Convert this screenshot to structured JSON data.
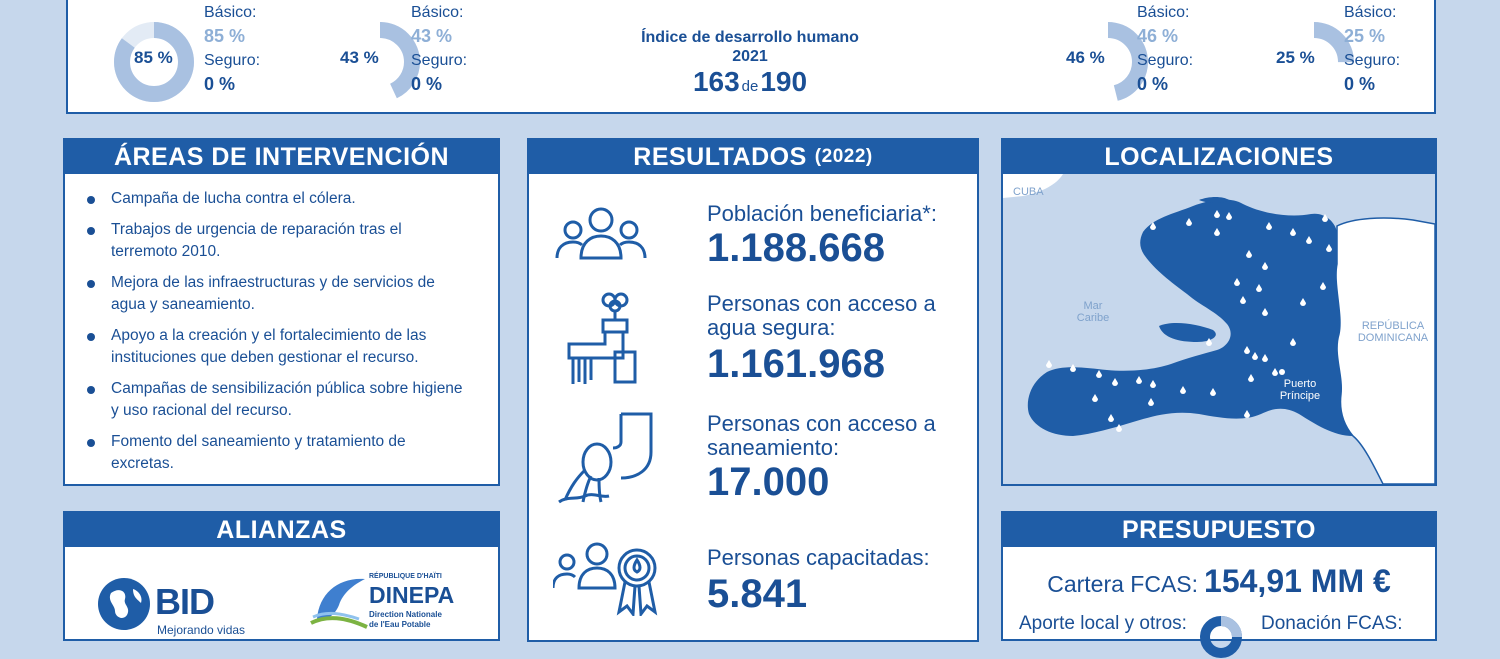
{
  "top_stats": [
    {
      "center": "85 %",
      "label1": "Básico:",
      "value1": "85 %",
      "label2": "Seguro:",
      "value2": "0 %",
      "fraction": 0.85
    },
    {
      "center": "43 %",
      "label1": "Básico:",
      "value1": "43 %",
      "label2": "Seguro:",
      "value2": "0 %",
      "fraction": 0.43
    },
    {
      "center": "46 %",
      "label1": "Básico:",
      "value1": "46 %",
      "label2": "Seguro:",
      "value2": "0 %",
      "fraction": 0.46
    },
    {
      "center": "25 %",
      "label1": "Básico:",
      "value1": "25 %",
      "label2": "Seguro:",
      "value2": "0 %",
      "fraction": 0.25
    }
  ],
  "idh": {
    "title": "Índice de desarrollo humano 2021",
    "rank": "163",
    "de": "de",
    "total": "190"
  },
  "areas": {
    "title": "ÁREAS DE INTERVENCIÓN",
    "items": [
      "Campaña de lucha contra el cólera.",
      "Trabajos de urgencia de reparación tras el terremoto 2010.",
      "Mejora de las infraestructuras y de servicios de agua y saneamiento.",
      "Apoyo a la creación y el fortalecimiento de las instituciones que deben gestionar el recurso.",
      "Campañas de sensibilización pública sobre  higiene y uso racional del recurso.",
      "Fomento del saneamiento y tratamiento de excretas."
    ]
  },
  "alianzas": {
    "title": "ALIANZAS",
    "bid_name": "BID",
    "bid_tagline": "Mejorando vidas",
    "dinepa_top": "RÉPUBLIQUE D'HAÏTI",
    "dinepa_name": "DINEPA",
    "dinepa_sub1": "Direction Nationale",
    "dinepa_sub2": "de l'Eau Potable"
  },
  "resultados": {
    "title": "RESULTADOS",
    "year": "(2022)",
    "items": [
      {
        "label": "Población beneficiaria*:",
        "value": "1.188.668",
        "icon": "people-group-icon"
      },
      {
        "label": "Personas con acceso a agua segura:",
        "value": "1.161.968",
        "icon": "water-tap-icon"
      },
      {
        "label": "Personas con acceso a saneamiento:",
        "value": "17.000",
        "icon": "sanitation-pipe-icon"
      },
      {
        "label": "Personas capacitadas:",
        "value": "5.841",
        "icon": "training-award-icon"
      }
    ]
  },
  "localizaciones": {
    "title": "LOCALIZACIONES",
    "cuba": "CUBA",
    "mar1": "Mar",
    "mar2": "Caribe",
    "rd1": "REPÚBLICA",
    "rd2": "DOMINICANA",
    "pp1": "Puerto",
    "pp2": "Príncipe"
  },
  "presupuesto": {
    "title": "PRESUPUESTO",
    "cartera_label": "Cartera FCAS:",
    "cartera_value": "154,91 MM €",
    "aporte_label": "Aporte local y otros:",
    "donacion_label": "Donación FCAS:"
  },
  "colors": {
    "primary": "#1f5da7",
    "light": "#8eafd6",
    "background": "#c6d7ec"
  }
}
